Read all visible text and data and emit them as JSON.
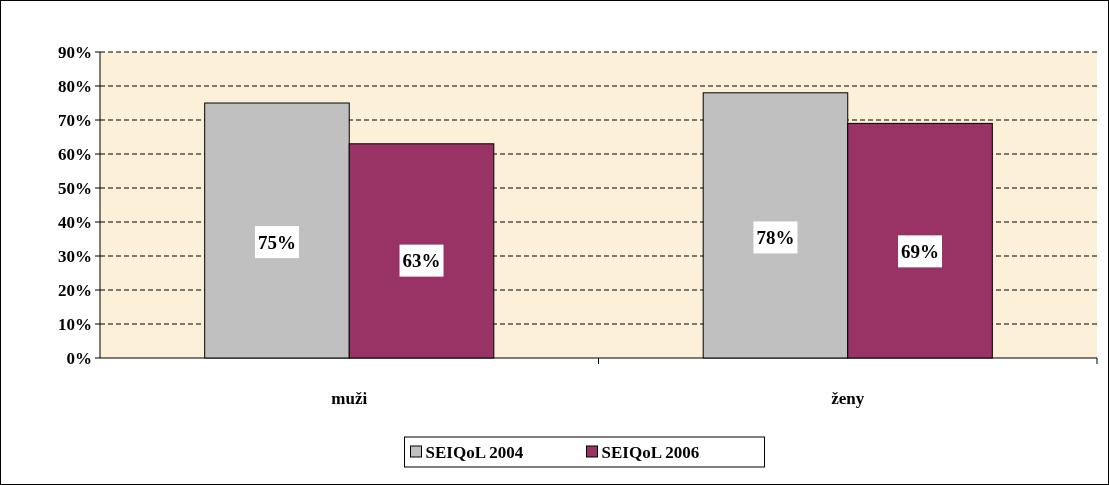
{
  "chart_data": {
    "type": "bar",
    "categories": [
      "muži",
      "ženy"
    ],
    "series": [
      {
        "name": "SEIQoL 2004",
        "color": "#c0c0c0",
        "values": [
          75,
          78
        ],
        "value_labels": [
          "75%",
          "78%"
        ]
      },
      {
        "name": "SEIQoL 2006",
        "color": "#993366",
        "values": [
          63,
          69
        ],
        "value_labels": [
          "63%",
          "69%"
        ]
      }
    ],
    "ylim": [
      0,
      90
    ],
    "yticks": [
      {
        "value": 0,
        "label": "0%"
      },
      {
        "value": 10,
        "label": "10%"
      },
      {
        "value": 20,
        "label": "20%"
      },
      {
        "value": 30,
        "label": "30%"
      },
      {
        "value": 40,
        "label": "40%"
      },
      {
        "value": 50,
        "label": "50%"
      },
      {
        "value": 60,
        "label": "60%"
      },
      {
        "value": 70,
        "label": "70%"
      },
      {
        "value": 80,
        "label": "80%"
      },
      {
        "value": 90,
        "label": "90%"
      }
    ],
    "grid": "y",
    "legend": "bottom"
  }
}
